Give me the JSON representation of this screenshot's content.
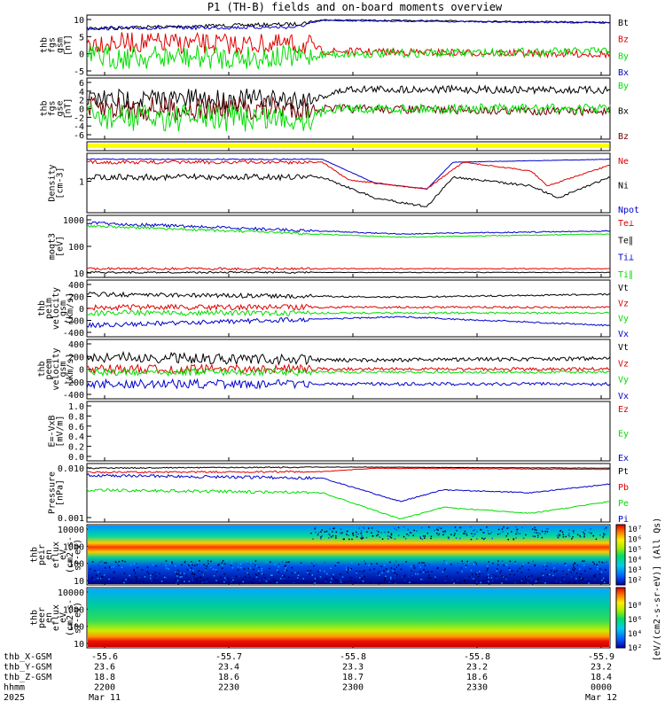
{
  "title": "P1 (TH-B) fields and on-board moments overview",
  "colors": {
    "black": "#000000",
    "red": "#e00000",
    "green": "#00dd00",
    "blue": "#0000cc",
    "brown": "#6b0000",
    "yellow": "#ffff00"
  },
  "panels": [
    {
      "ylabel": [
        "thb",
        "fgs",
        "gsm",
        "[nT]"
      ],
      "ticks": [
        "10",
        "5",
        "0",
        "-5"
      ],
      "legend": [
        {
          "t": "Bt",
          "c": "black"
        },
        {
          "t": "Bz",
          "c": "red"
        },
        {
          "t": "By",
          "c": "green"
        },
        {
          "t": "Bx",
          "c": "blue"
        }
      ]
    },
    {
      "ylabel": [
        "thb",
        "fgs",
        "gse",
        "[nT]"
      ],
      "ticks": [
        "6",
        "4",
        "2",
        "0",
        "-2",
        "-4",
        "-6"
      ],
      "legend": [
        {
          "t": "By",
          "c": "green"
        },
        {
          "t": "Bx",
          "c": "black"
        },
        {
          "t": "Bz",
          "c": "brown"
        }
      ]
    },
    {
      "ylabel": [],
      "ticks": [],
      "legend": []
    },
    {
      "ylabel": [
        "Density",
        "[cm-3]"
      ],
      "ticks": [
        "1"
      ],
      "legend": [
        {
          "t": "Ne",
          "c": "red"
        },
        {
          "t": "Ni",
          "c": "black"
        },
        {
          "t": "Npot",
          "c": "blue"
        }
      ]
    },
    {
      "ylabel": [
        "moqt3",
        "[eV]"
      ],
      "ticks": [
        "1000",
        "100",
        "10"
      ],
      "legend": [
        {
          "t": "Te⊥",
          "c": "red"
        },
        {
          "t": "Te∥",
          "c": "black"
        },
        {
          "t": "Ti⊥",
          "c": "blue"
        },
        {
          "t": "Ti∥",
          "c": "green"
        }
      ]
    },
    {
      "ylabel": [
        "thb",
        "peim",
        "velocity",
        "gsm",
        "[km/s]"
      ],
      "ticks": [
        "400",
        "200",
        "0",
        "-200",
        "-400"
      ],
      "legend": [
        {
          "t": "Vt",
          "c": "black"
        },
        {
          "t": "Vz",
          "c": "red"
        },
        {
          "t": "Vy",
          "c": "green"
        },
        {
          "t": "Vx",
          "c": "blue"
        }
      ]
    },
    {
      "ylabel": [
        "thb",
        "peem",
        "velocity",
        "gsm",
        "[km/s]"
      ],
      "ticks": [
        "400",
        "200",
        "0",
        "-200",
        "-400"
      ],
      "legend": [
        {
          "t": "Vt",
          "c": "black"
        },
        {
          "t": "Vz",
          "c": "red"
        },
        {
          "t": "Vy",
          "c": "green"
        },
        {
          "t": "Vx",
          "c": "blue"
        }
      ]
    },
    {
      "ylabel": [
        "E=-VxB",
        "[mV/m]"
      ],
      "ticks": [
        "1.0",
        "0.8",
        "0.6",
        "0.4",
        "0.2",
        "0.0"
      ],
      "legend": [
        {
          "t": "Ez",
          "c": "red"
        },
        {
          "t": "Ey",
          "c": "green"
        },
        {
          "t": "Ex",
          "c": "blue"
        }
      ]
    },
    {
      "ylabel": [
        "Pressure",
        "[nPa]"
      ],
      "ticks": [
        "0.010",
        "0.001"
      ],
      "legend": [
        {
          "t": "Pt",
          "c": "black"
        },
        {
          "t": "Pb",
          "c": "red"
        },
        {
          "t": "Pe",
          "c": "green"
        },
        {
          "t": "Pi",
          "c": "blue"
        }
      ]
    },
    {
      "ylabel": [
        "thb",
        "peir",
        "en",
        "eflux",
        "eV",
        "(cm2-s-",
        "sr-eV)"
      ],
      "ticks": [
        "10000",
        "1000",
        "100",
        "10"
      ],
      "legend": []
    },
    {
      "ylabel": [
        "thb",
        "peer",
        "en",
        "eflux",
        "eV",
        "(cm2-s-",
        "sr-eV)"
      ],
      "ticks": [
        "10000",
        "1000",
        "100",
        "10"
      ],
      "legend": []
    }
  ],
  "colorbar": {
    "ticks": [
      "10⁷",
      "10⁶",
      "10⁵",
      "10⁴",
      "10³",
      "10²"
    ],
    "label": "[eV/(cm2-s-sr-eV)] (All Qs)"
  },
  "colorbar2": {
    "ticks": [
      "10⁸",
      "10⁶",
      "10⁴",
      "10²"
    ]
  },
  "footer": {
    "rows": [
      {
        "label": "thb_X-GSM",
        "vals": [
          "-55.6",
          "-55.7",
          "-55.8",
          "-55.8",
          "-55.9"
        ]
      },
      {
        "label": "thb_Y-GSM",
        "vals": [
          "23.6",
          "23.4",
          "23.3",
          "23.2",
          "23.2"
        ]
      },
      {
        "label": "thb_Z-GSM",
        "vals": [
          "18.8",
          "18.6",
          "18.7",
          "18.6",
          "18.4"
        ]
      },
      {
        "label": "hhmm",
        "vals": [
          "2200",
          "2230",
          "2300",
          "2330",
          "0000"
        ]
      },
      {
        "label": "2025",
        "vals": [
          "Mar 11",
          "",
          "",
          "",
          "Mar 12"
        ]
      }
    ]
  },
  "chart_data": {
    "type": "line",
    "title": "P1 (TH-B) fields and on-board moments overview",
    "x": [
      "2200",
      "2230",
      "2300",
      "2330",
      "0000"
    ],
    "series": [
      {
        "name": "Bt",
        "values": [
          7.5,
          8.5,
          9.5,
          10,
          9
        ]
      },
      {
        "name": "Bz",
        "values": [
          3,
          0,
          -1,
          -1.5,
          -1
        ]
      },
      {
        "name": "By",
        "values": [
          -3,
          0,
          0,
          0,
          0
        ]
      },
      {
        "name": "Bx",
        "values": [
          6,
          5,
          9,
          9,
          8
        ]
      },
      {
        "name": "Ne",
        "values": [
          3,
          3,
          0.4,
          2,
          2.5
        ]
      },
      {
        "name": "Ni",
        "values": [
          1,
          1,
          0.1,
          0.8,
          1.2
        ]
      },
      {
        "name": "Npot",
        "values": [
          3.5,
          3.5,
          0.7,
          3,
          3
        ]
      },
      {
        "name": "Te⊥",
        "values": [
          15,
          15,
          15,
          15,
          15
        ]
      },
      {
        "name": "Te∥",
        "values": [
          12,
          12,
          12,
          12,
          12
        ]
      },
      {
        "name": "Ti⊥",
        "values": [
          600,
          600,
          300,
          450,
          450
        ]
      },
      {
        "name": "Ti∥",
        "values": [
          500,
          500,
          280,
          350,
          350
        ]
      },
      {
        "name": "Pt",
        "values": [
          0.04,
          0.04,
          0.05,
          0.04,
          0.04
        ]
      },
      {
        "name": "Pb",
        "values": [
          0.03,
          0.035,
          0.05,
          0.04,
          0.03
        ]
      },
      {
        "name": "Pe",
        "values": [
          0.006,
          0.005,
          0.0007,
          0.001,
          0.003
        ]
      },
      {
        "name": "Pi",
        "values": [
          0.025,
          0.02,
          0.003,
          0.008,
          0.01
        ]
      }
    ]
  }
}
